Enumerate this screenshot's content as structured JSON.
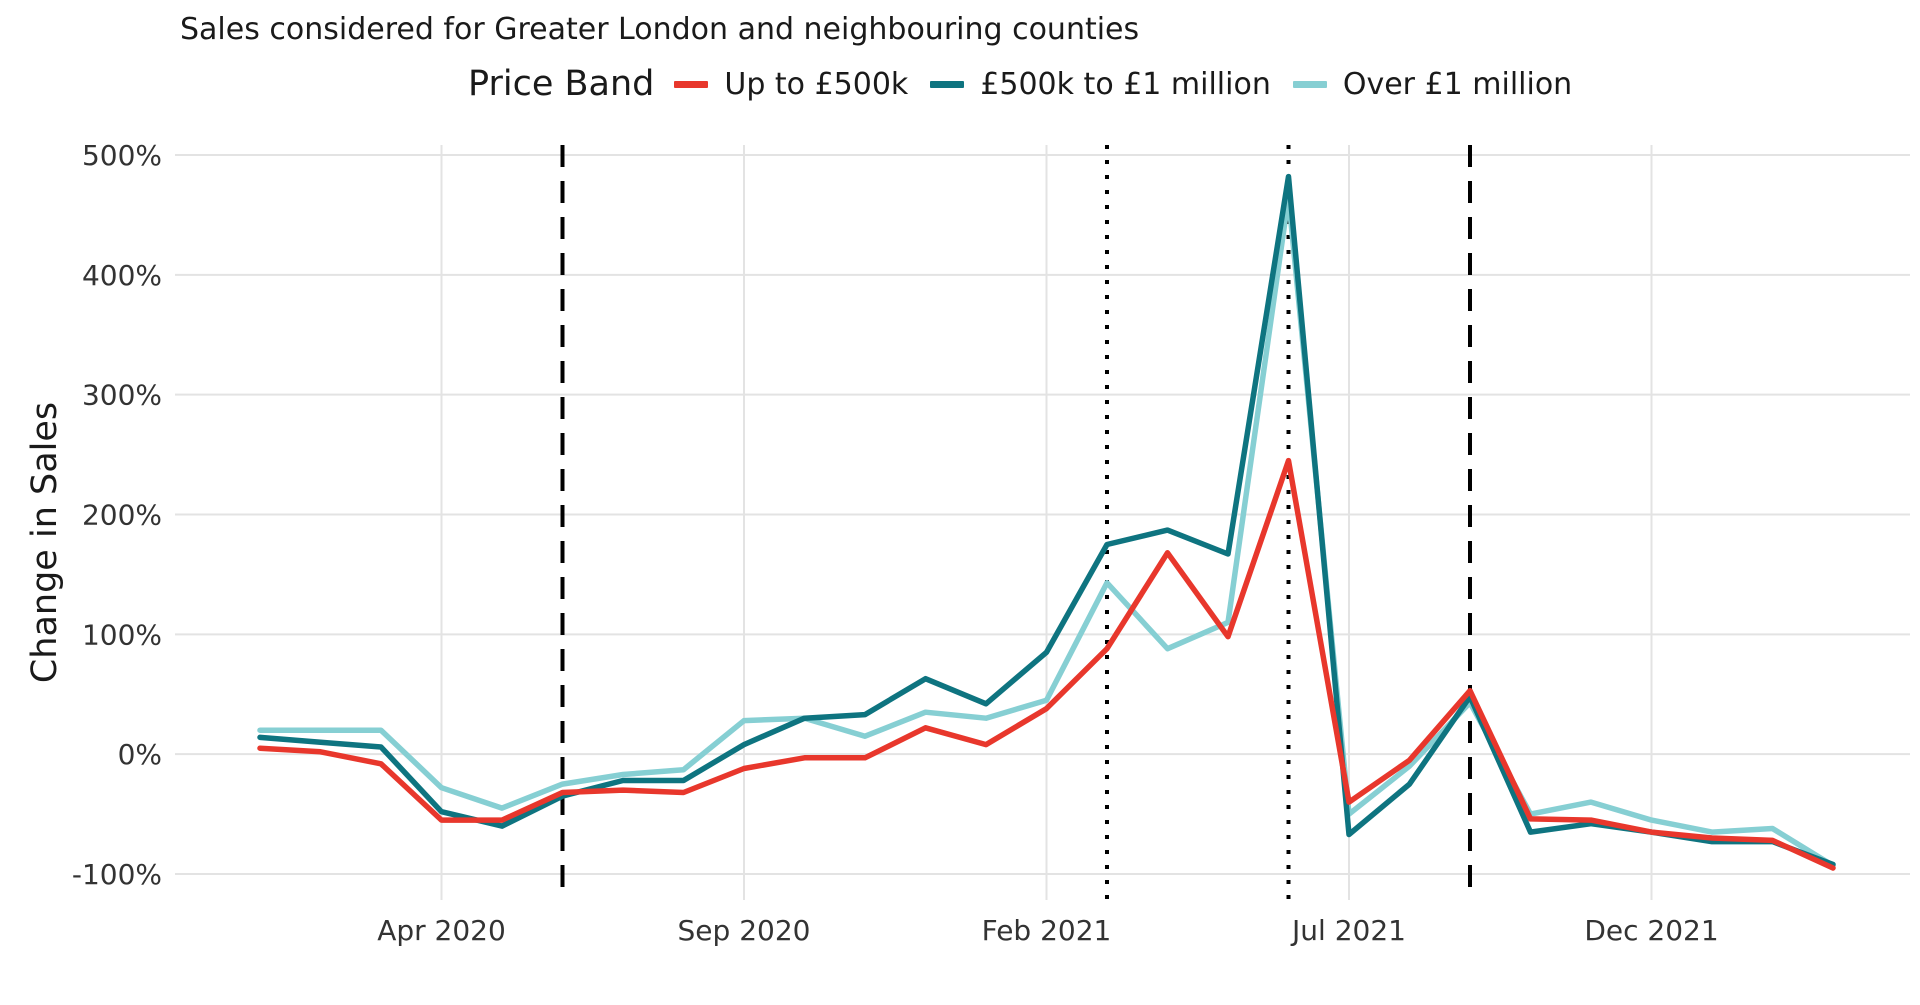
{
  "header": {
    "subtitle": "Sales considered for Greater London and neighbouring counties"
  },
  "legend": {
    "title": "Price Band",
    "items": [
      {
        "label": "Up to £500k",
        "color": "#e8372c"
      },
      {
        "label": "£500k to £1 million",
        "color": "#0e7480"
      },
      {
        "label": "Over £1 million",
        "color": "#86cfd3"
      }
    ]
  },
  "chart_data": {
    "type": "line",
    "title": "",
    "subtitle": "Sales considered for Greater London and neighbouring counties",
    "xlabel": "",
    "ylabel": "Change in Sales",
    "ylim": [
      -100,
      500
    ],
    "x_ticks": [
      "Apr 2020",
      "Sep 2020",
      "Feb 2021",
      "Jul 2021",
      "Dec 2021"
    ],
    "y_ticks": [
      "500%",
      "400%",
      "300%",
      "200%",
      "100%",
      "0%",
      "-100%"
    ],
    "y_tick_values": [
      500,
      400,
      300,
      200,
      100,
      0,
      -100
    ],
    "x": [
      "2020-01",
      "2020-02",
      "2020-03",
      "2020-04",
      "2020-05",
      "2020-06",
      "2020-07",
      "2020-08",
      "2020-09",
      "2020-10",
      "2020-11",
      "2020-12",
      "2021-01",
      "2021-02",
      "2021-03",
      "2021-04",
      "2021-05",
      "2021-06",
      "2021-07",
      "2021-08",
      "2021-09",
      "2021-10",
      "2021-11",
      "2021-12",
      "2022-01",
      "2022-02",
      "2022-03"
    ],
    "series": [
      {
        "name": "Up to £500k",
        "color": "#e8372c",
        "values": [
          5,
          2,
          -8,
          -55,
          -55,
          -32,
          -30,
          -32,
          -12,
          -3,
          -3,
          22,
          8,
          38,
          88,
          168,
          98,
          245,
          -40,
          -5,
          53,
          -54,
          -55,
          -65,
          -70,
          -72,
          -95
        ]
      },
      {
        "name": "£500k to £1 million",
        "color": "#0e7480",
        "values": [
          14,
          10,
          6,
          -48,
          -60,
          -35,
          -22,
          -22,
          8,
          30,
          33,
          63,
          42,
          85,
          175,
          187,
          167,
          482,
          -67,
          -25,
          48,
          -65,
          -58,
          -65,
          -73,
          -73,
          -92
        ]
      },
      {
        "name": "Over £1 million",
        "color": "#86cfd3",
        "values": [
          20,
          20,
          20,
          -28,
          -45,
          -25,
          -17,
          -13,
          28,
          30,
          15,
          35,
          30,
          45,
          143,
          88,
          110,
          465,
          -50,
          -10,
          43,
          -50,
          -40,
          -55,
          -65,
          -62,
          -93
        ]
      }
    ],
    "vlines": [
      {
        "x": "2020-06",
        "style": "dashed"
      },
      {
        "x": "2021-03",
        "style": "dotted"
      },
      {
        "x": "2021-06",
        "style": "dotted"
      },
      {
        "x": "2021-09",
        "style": "dashed"
      }
    ],
    "grid": true,
    "legend_position": "top"
  }
}
